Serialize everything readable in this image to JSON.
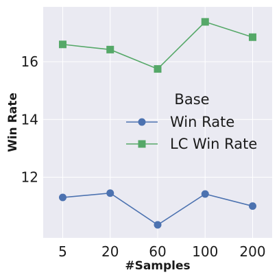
{
  "chart_data": {
    "type": "line",
    "x": [
      "5",
      "20",
      "60",
      "100",
      "200"
    ],
    "xlabel": "#Samples",
    "ylabel": "Win Rate",
    "ylim": [
      9.9,
      17.9
    ],
    "yticks": [
      12,
      14,
      16
    ],
    "grid": true,
    "legend": {
      "title": "Base",
      "placement": "center-right"
    },
    "series": [
      {
        "name": "Win Rate",
        "marker": "circle",
        "color": "#4c72b0",
        "values": [
          11.3,
          11.45,
          10.35,
          11.42,
          11.0
        ]
      },
      {
        "name": "LC Win Rate",
        "marker": "square",
        "color": "#55a868",
        "values": [
          16.6,
          16.42,
          15.75,
          17.38,
          16.85
        ]
      }
    ],
    "colors": {
      "plot_background": "#eaeaf2",
      "grid": "#ffffff"
    }
  }
}
